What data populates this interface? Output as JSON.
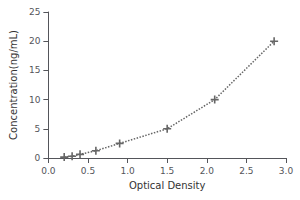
{
  "chart_data": {
    "type": "line",
    "xlabel": "Optical Density",
    "ylabel": "Concentration(ng/mL)",
    "x": [
      0.2,
      0.3,
      0.4,
      0.6,
      0.9,
      1.5,
      2.1,
      2.85
    ],
    "values": [
      0.156,
      0.312,
      0.625,
      1.25,
      2.5,
      5.0,
      10.0,
      20.0
    ],
    "xlim": [
      0,
      3.0
    ],
    "ylim": [
      0,
      25
    ],
    "xticks": [
      {
        "value": 0,
        "label": "0.0"
      },
      0.5,
      {
        "value": 1,
        "label": "1.0"
      },
      1.5,
      {
        "value": 2,
        "label": "2.0"
      },
      2.5,
      {
        "value": 3,
        "label": "3.0"
      }
    ],
    "yticks": [
      0,
      5,
      10,
      15,
      20,
      25
    ],
    "color": "#666666",
    "marker": "plus",
    "line_style": "dotted",
    "grid": false
  }
}
